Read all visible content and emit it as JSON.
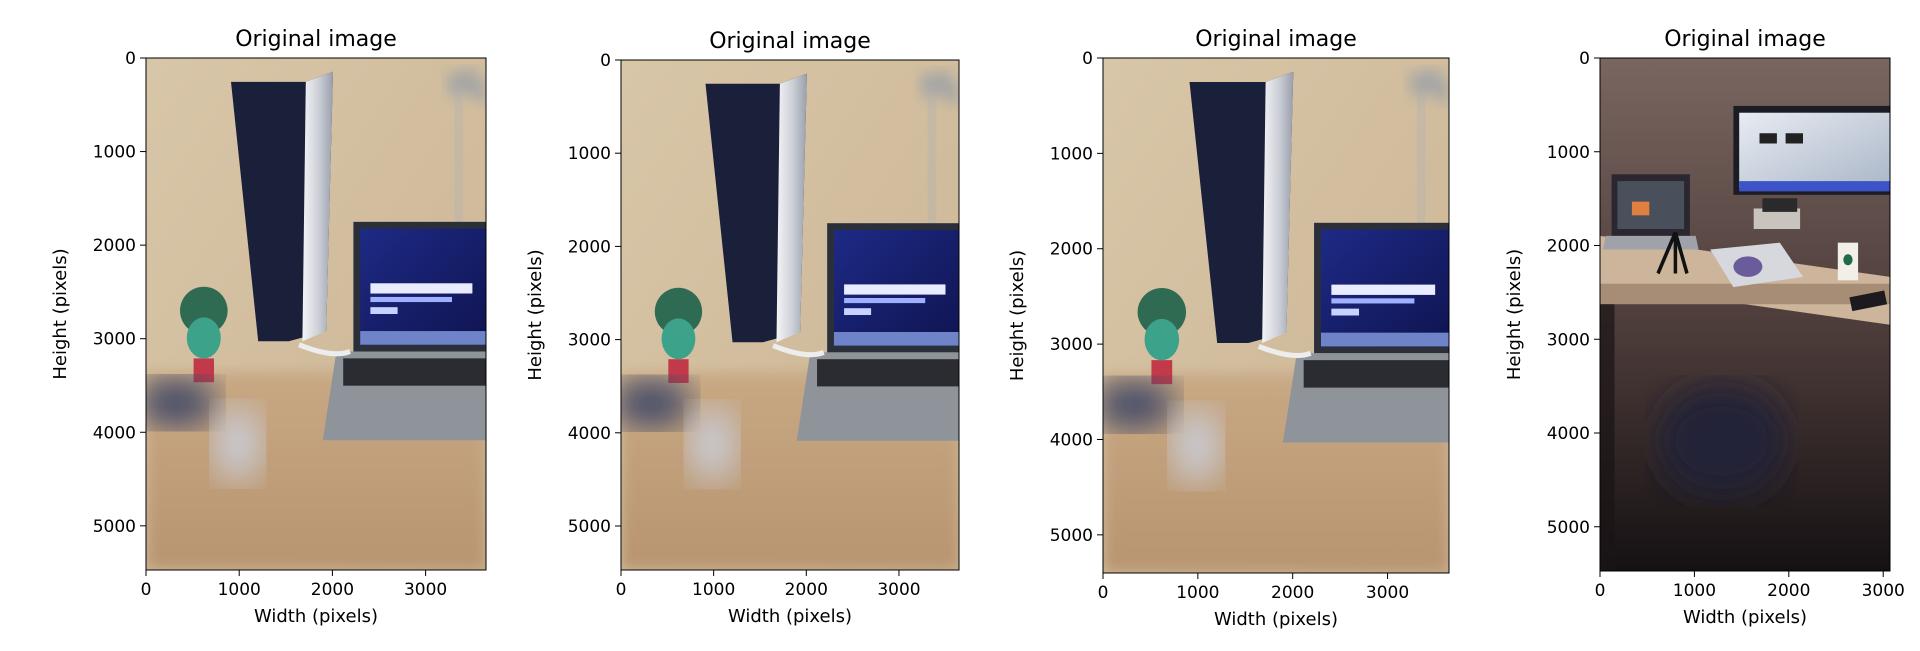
{
  "chart_data": [
    {
      "type": "image",
      "title": "Original image",
      "xlabel": "Width (pixels)",
      "ylabel": "Height (pixels)",
      "xlim": [
        0,
        3648
      ],
      "ylim": [
        5472,
        0
      ],
      "xticks": [
        0,
        1000,
        2000,
        3000
      ],
      "yticks": [
        0,
        1000,
        2000,
        3000,
        4000,
        5000
      ],
      "image_subject": "playstation-laptop-figurine-photo"
    },
    {
      "type": "image",
      "title": "Original image",
      "xlabel": "Width (pixels)",
      "ylabel": "Height (pixels)",
      "xlim": [
        0,
        3648
      ],
      "ylim": [
        5472,
        0
      ],
      "xticks": [
        0,
        1000,
        2000,
        3000
      ],
      "yticks": [
        0,
        1000,
        2000,
        3000,
        4000,
        5000
      ],
      "image_subject": "playstation-laptop-figurine-photo"
    },
    {
      "type": "image",
      "title": "Original image",
      "xlabel": "Width (pixels)",
      "ylabel": "Height (pixels)",
      "xlim": [
        0,
        3648
      ],
      "ylim": [
        5400,
        0
      ],
      "xticks": [
        0,
        1000,
        2000,
        3000
      ],
      "yticks": [
        0,
        1000,
        2000,
        3000,
        4000,
        5000
      ],
      "image_subject": "playstation-laptop-figurine-photo"
    },
    {
      "type": "image",
      "title": "Original image",
      "xlabel": "Width (pixels)",
      "ylabel": "Height (pixels)",
      "xlim": [
        0,
        3072
      ],
      "ylim": [
        5472,
        0
      ],
      "xticks": [
        0,
        1000,
        2000,
        3000
      ],
      "yticks": [
        0,
        1000,
        2000,
        3000,
        4000,
        5000
      ],
      "image_subject": "desk-setup-photo"
    }
  ]
}
